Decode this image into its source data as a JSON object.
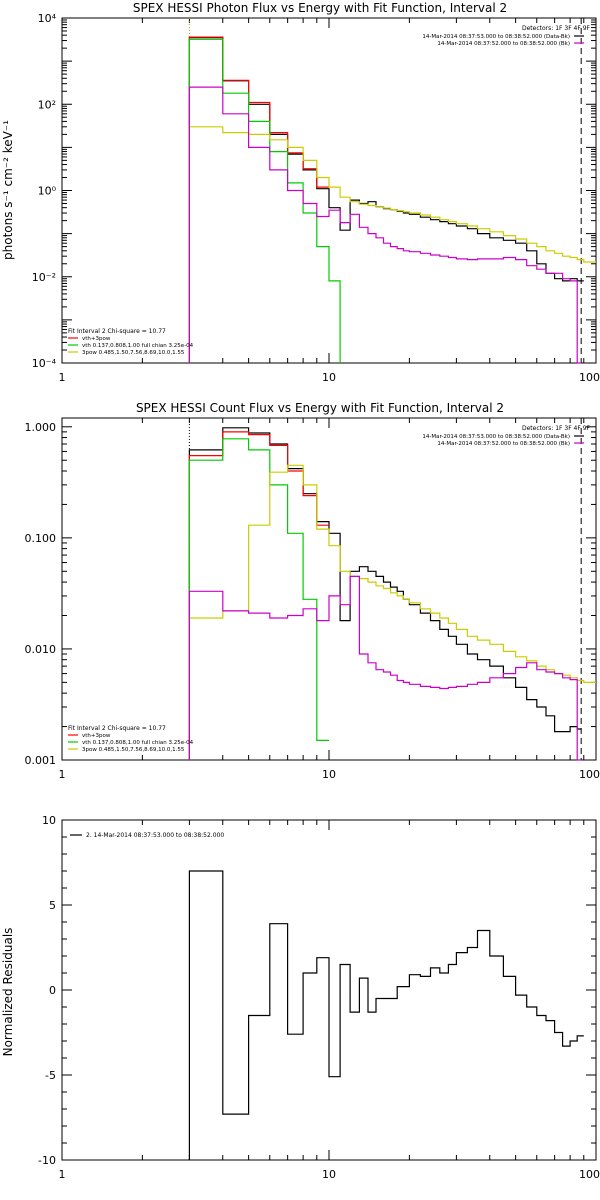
{
  "chart_data": [
    {
      "type": "line",
      "title": "SPEX HESSI Photon Flux vs Energy with Fit Function, Interval 2",
      "ylabel": "photons s⁻¹ cm⁻² keV⁻¹",
      "xlabel": "",
      "xscale": "log",
      "yscale": "log",
      "xlim": [
        1,
        100
      ],
      "ylim": [
        0.0001,
        10000
      ],
      "x_ticks": [
        1,
        10,
        100
      ],
      "x_tick_labels": [
        "1",
        "10",
        "100"
      ],
      "y_ticks": [
        0.0001,
        0.01,
        1,
        100,
        10000
      ],
      "y_tick_labels": [
        "10⁻⁴",
        "10⁻²",
        "10⁰",
        "10²",
        "10⁴"
      ],
      "vlines": [
        {
          "x": 3.0,
          "color": "#cc9900",
          "style": "dotted"
        },
        {
          "x": 88.0,
          "color": "#000000",
          "style": "dashed"
        }
      ],
      "legend_top_right": {
        "header": "Detectors: 1F 3F 4F 9F",
        "entries": [
          {
            "text": "14-Mar-2014 08:37:53.000 to 08:38:52.000 (Data-Bk)",
            "color": "#000000"
          },
          {
            "text": "14-Mar-2014 08:37:52.000 to 08:38:52.000 (Bk)",
            "color": "#cc00cc"
          }
        ]
      },
      "legend_bottom_left": {
        "header": "Fit Interval 2   Chi-square = 10.77",
        "entries": [
          {
            "text": "vth+3pow",
            "color": "#ff0000"
          },
          {
            "text": "vth 0.137,0.808,1.00  full chian 3.25e-04",
            "color": "#00cc00"
          },
          {
            "text": "3pow 0.485,1.50,7.56,8.69,10.0,1.55",
            "color": "#cccc00"
          }
        ]
      },
      "series": [
        {
          "color": "#000000",
          "edges": [
            3.0,
            4.0,
            5.0,
            6.0,
            7.0,
            8.0,
            9.0,
            10.0,
            11.0,
            12.0,
            13.0,
            14.0,
            15.0,
            16.0,
            17.0,
            18.0,
            19.0,
            20.0,
            22.0,
            24.0,
            26.0,
            28.0,
            30.0,
            33.0,
            36.0,
            40.0,
            45.0,
            50.0,
            55.0,
            60.0,
            65.0,
            70.0,
            75.0,
            80.0,
            85.0,
            90.0
          ],
          "values": [
            3500,
            350,
            100,
            20,
            7,
            3,
            1.1,
            0.4,
            0.12,
            0.6,
            0.5,
            0.55,
            0.42,
            0.38,
            0.36,
            0.33,
            0.3,
            0.28,
            0.24,
            0.21,
            0.19,
            0.17,
            0.15,
            0.13,
            0.1,
            0.08,
            0.07,
            0.06,
            0.04,
            0.02,
            0.012,
            0.009,
            0.008,
            0.009,
            0.008
          ]
        },
        {
          "color": "#ff0000",
          "edges": [
            3.0,
            4.0,
            5.0,
            6.0,
            7.0,
            8.0,
            9.0,
            10.0
          ],
          "values": [
            3600,
            360,
            110,
            22,
            7.5,
            3.2,
            1.2
          ]
        },
        {
          "color": "#00cc00",
          "edges": [
            3.0,
            4.0,
            5.0,
            6.0,
            7.0,
            8.0,
            9.0,
            10.0,
            11.0
          ],
          "values": [
            3200,
            180,
            40,
            8,
            1.5,
            0.3,
            0.05,
            0.008,
            0.0001
          ]
        },
        {
          "color": "#cccc00",
          "edges": [
            3.0,
            4.0,
            5.0,
            6.0,
            7.0,
            8.0,
            9.0,
            10.0,
            11.0,
            12.0,
            13.0,
            14.0,
            15.0,
            16.0,
            17.0,
            18.0,
            19.0,
            20.0,
            22.0,
            24.0,
            26.0,
            28.0,
            30.0,
            33.0,
            36.0,
            40.0,
            45.0,
            50.0,
            55.0,
            60.0,
            65.0,
            70.0,
            75.0,
            80.0,
            85.0,
            90.0,
            100.0
          ],
          "values": [
            30,
            22,
            20,
            15,
            10,
            5,
            2,
            1.2,
            0.7,
            0.55,
            0.48,
            0.45,
            0.42,
            0.39,
            0.36,
            0.34,
            0.32,
            0.3,
            0.27,
            0.24,
            0.21,
            0.19,
            0.17,
            0.15,
            0.13,
            0.11,
            0.09,
            0.075,
            0.06,
            0.05,
            0.04,
            0.035,
            0.03,
            0.028,
            0.025,
            0.022
          ]
        },
        {
          "color": "#cc00cc",
          "edges": [
            3.0,
            4.0,
            5.0,
            6.0,
            7.0,
            8.0,
            9.0,
            10.0,
            11.0,
            12.0,
            13.0,
            14.0,
            15.0,
            16.0,
            17.0,
            18.0,
            19.0,
            20.0,
            22.0,
            24.0,
            26.0,
            28.0,
            30.0,
            33.0,
            36.0,
            40.0,
            45.0,
            50.0,
            55.0,
            60.0,
            65.0,
            70.0,
            75.0,
            80.0,
            85.0,
            88.0
          ],
          "values": [
            250,
            60,
            10,
            3,
            1,
            0.5,
            0.25,
            0.35,
            0.18,
            0.28,
            0.14,
            0.1,
            0.08,
            0.06,
            0.05,
            0.045,
            0.04,
            0.038,
            0.035,
            0.032,
            0.03,
            0.028,
            0.026,
            0.025,
            0.026,
            0.026,
            0.028,
            0.025,
            0.018,
            0.015,
            0.012,
            0.012,
            0.009,
            0.008,
            0.0001
          ]
        }
      ]
    },
    {
      "type": "line",
      "title": "SPEX HESSI Count Flux vs Energy with Fit Function, Interval 2",
      "ylabel": "",
      "xlabel": "",
      "xscale": "log",
      "yscale": "log",
      "xlim": [
        1,
        100
      ],
      "ylim": [
        0.001,
        1.2
      ],
      "x_ticks": [
        1,
        10,
        100
      ],
      "x_tick_labels": [
        "1",
        "10",
        "100"
      ],
      "y_ticks": [
        0.001,
        0.01,
        0.1,
        1.0
      ],
      "y_tick_labels": [
        "0.001",
        "0.010",
        "0.100",
        "1.000"
      ],
      "vlines": [
        {
          "x": 3.0,
          "color": "#000000",
          "style": "dotted"
        },
        {
          "x": 88.0,
          "color": "#000000",
          "style": "dashed"
        }
      ],
      "legend_top_right": {
        "header": "Detectors: 1F 3F 4F 9F",
        "entries": [
          {
            "text": "14-Mar-2014 08:37:53.000 to 08:38:52.000 (Data-Bk)",
            "color": "#000000"
          },
          {
            "text": "14-Mar-2014 08:37:52.000 to 08:38:52.000 (Bk)",
            "color": "#cc00cc"
          }
        ]
      },
      "legend_bottom_left": {
        "header": "Fit Interval 2   Chi-square = 10.77",
        "entries": [
          {
            "text": "vth+3pow",
            "color": "#ff0000"
          },
          {
            "text": "vth 0.137,0.808,1.00  full chian 3.25e-04",
            "color": "#00cc00"
          },
          {
            "text": "3pow 0.485,1.50,7.56,8.69,10.0,1.55",
            "color": "#cccc00"
          }
        ]
      },
      "series": [
        {
          "color": "#000000",
          "edges": [
            3.0,
            4.0,
            5.0,
            6.0,
            7.0,
            8.0,
            9.0,
            10.0,
            11.0,
            12.0,
            13.0,
            14.0,
            15.0,
            16.0,
            17.0,
            18.0,
            19.0,
            20.0,
            22.0,
            24.0,
            26.0,
            28.0,
            30.0,
            33.0,
            36.0,
            40.0,
            45.0,
            50.0,
            55.0,
            60.0,
            65.0,
            70.0,
            75.0,
            80.0,
            85.0,
            88.0
          ],
          "values": [
            0.62,
            0.98,
            0.88,
            0.7,
            0.42,
            0.25,
            0.14,
            0.11,
            0.018,
            0.05,
            0.055,
            0.05,
            0.045,
            0.04,
            0.036,
            0.033,
            0.028,
            0.025,
            0.021,
            0.018,
            0.015,
            0.013,
            0.011,
            0.009,
            0.008,
            0.007,
            0.0055,
            0.0045,
            0.0035,
            0.003,
            0.0025,
            0.0018,
            0.0018,
            0.002,
            0.0019
          ]
        },
        {
          "color": "#ff0000",
          "edges": [
            3.0,
            4.0,
            5.0,
            6.0,
            7.0,
            8.0,
            9.0,
            10.0
          ],
          "values": [
            0.55,
            0.9,
            0.85,
            0.68,
            0.4,
            0.24,
            0.13
          ]
        },
        {
          "color": "#00cc00",
          "edges": [
            3.0,
            4.0,
            5.0,
            6.0,
            7.0,
            8.0,
            9.0,
            10.0
          ],
          "values": [
            0.5,
            0.78,
            0.62,
            0.3,
            0.11,
            0.028,
            0.0015
          ]
        },
        {
          "color": "#cccc00",
          "edges": [
            3.0,
            4.0,
            5.0,
            6.0,
            7.0,
            8.0,
            9.0,
            10.0,
            11.0,
            12.0,
            13.0,
            14.0,
            15.0,
            16.0,
            17.0,
            18.0,
            19.0,
            20.0,
            22.0,
            24.0,
            26.0,
            28.0,
            30.0,
            33.0,
            36.0,
            40.0,
            45.0,
            50.0,
            55.0,
            60.0,
            65.0,
            70.0,
            75.0,
            80.0,
            85.0,
            90.0,
            100.0
          ],
          "values": [
            0.019,
            0.022,
            0.13,
            0.39,
            0.45,
            0.3,
            0.12,
            0.085,
            0.05,
            0.045,
            0.043,
            0.04,
            0.037,
            0.035,
            0.032,
            0.03,
            0.028,
            0.026,
            0.023,
            0.021,
            0.019,
            0.017,
            0.015,
            0.013,
            0.012,
            0.011,
            0.0095,
            0.0085,
            0.0078,
            0.007,
            0.0065,
            0.006,
            0.0058,
            0.0055,
            0.0052,
            0.005
          ]
        },
        {
          "color": "#cc00cc",
          "edges": [
            3.0,
            4.0,
            5.0,
            6.0,
            7.0,
            8.0,
            9.0,
            10.0,
            11.0,
            12.0,
            13.0,
            14.0,
            15.0,
            16.0,
            17.0,
            18.0,
            19.0,
            20.0,
            22.0,
            24.0,
            26.0,
            28.0,
            30.0,
            33.0,
            36.0,
            40.0,
            45.0,
            50.0,
            55.0,
            60.0,
            65.0,
            70.0,
            75.0,
            80.0,
            85.0,
            88.0
          ],
          "values": [
            0.033,
            0.022,
            0.021,
            0.019,
            0.02,
            0.023,
            0.018,
            0.03,
            0.025,
            0.045,
            0.009,
            0.0075,
            0.0065,
            0.0062,
            0.0058,
            0.0052,
            0.005,
            0.0048,
            0.0046,
            0.0045,
            0.0044,
            0.0045,
            0.0046,
            0.0048,
            0.005,
            0.0055,
            0.006,
            0.0068,
            0.0075,
            0.0065,
            0.0062,
            0.006,
            0.0055,
            0.0053,
            0.001
          ]
        }
      ]
    },
    {
      "type": "line",
      "title": "",
      "ylabel": "Normalized Residuals",
      "xlabel": "",
      "xscale": "log",
      "yscale": "linear",
      "xlim": [
        1,
        100
      ],
      "ylim": [
        -10,
        10
      ],
      "x_ticks": [
        1,
        10,
        100
      ],
      "x_tick_labels": [
        "1",
        "10",
        "100"
      ],
      "y_ticks": [
        -10,
        -5,
        0,
        5,
        10
      ],
      "y_tick_labels": [
        "-10",
        "-5",
        "0",
        "5",
        "10"
      ],
      "legend_top_left": {
        "entries": [
          {
            "text": "2. 14-Mar-2014 08:37:53.000 to 08:38:52.000",
            "color": "#000000"
          }
        ]
      },
      "series": [
        {
          "color": "#000000",
          "edges": [
            3.0,
            4.0,
            5.0,
            6.0,
            7.0,
            8.0,
            9.0,
            10.0,
            11.0,
            12.0,
            13.0,
            14.0,
            15.0,
            16.0,
            17.0,
            18.0,
            19.0,
            20.0,
            22.0,
            24.0,
            26.0,
            28.0,
            30.0,
            33.0,
            36.0,
            40.0,
            45.0,
            50.0,
            55.0,
            60.0,
            65.0,
            70.0,
            75.0,
            80.0,
            85.0,
            90.0
          ],
          "values": [
            7.0,
            -7.3,
            -1.5,
            3.9,
            -2.6,
            1.0,
            1.9,
            -5.1,
            1.5,
            -1.3,
            0.7,
            -1.3,
            -0.5,
            -0.5,
            -0.5,
            0.2,
            0.2,
            0.9,
            0.8,
            1.3,
            1.0,
            1.5,
            2.2,
            2.5,
            3.5,
            2.0,
            0.8,
            -0.3,
            -1.0,
            -1.5,
            -1.8,
            -2.5,
            -3.3,
            -3.0,
            -2.7
          ]
        }
      ]
    }
  ]
}
